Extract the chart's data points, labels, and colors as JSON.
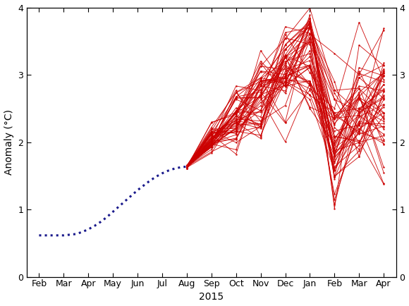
{
  "title": "",
  "xlabel": "2015",
  "ylabel": "Anomaly (°C)",
  "ylim": [
    0,
    4
  ],
  "yticks": [
    0,
    1,
    2,
    3,
    4
  ],
  "obs_color": "#1a1a8c",
  "forecast_color": "#cc0000",
  "background_color": "#ffffff",
  "x_tick_labels": [
    "Feb",
    "Mar",
    "Apr",
    "May",
    "Jun",
    "Jul",
    "Aug",
    "Sep",
    "Oct",
    "Nov",
    "Dec",
    "Jan",
    "Feb",
    "Mar",
    "Apr"
  ],
  "x_tick_positions": [
    1,
    2,
    3,
    4,
    5,
    6,
    7,
    8,
    9,
    10,
    11,
    12,
    13,
    14,
    15
  ],
  "obs_x": [
    1.0,
    1.25,
    1.5,
    1.75,
    2.0,
    2.25,
    2.5,
    2.75,
    3.0,
    3.25,
    3.5,
    3.75,
    4.0,
    4.25,
    4.5,
    4.75,
    5.0,
    5.25,
    5.5,
    5.75,
    6.0,
    6.25,
    6.5,
    6.75,
    7.0
  ],
  "obs_y": [
    0.62,
    0.62,
    0.62,
    0.62,
    0.62,
    0.63,
    0.64,
    0.67,
    0.71,
    0.76,
    0.82,
    0.89,
    0.97,
    1.05,
    1.13,
    1.21,
    1.29,
    1.36,
    1.43,
    1.49,
    1.54,
    1.58,
    1.61,
    1.63,
    1.64
  ],
  "forecast_origin_x": 7.0,
  "forecast_origin_y": 1.64,
  "num_members": 51,
  "seed": 99,
  "figsize": [
    5.8,
    4.34
  ],
  "dpi": 100
}
